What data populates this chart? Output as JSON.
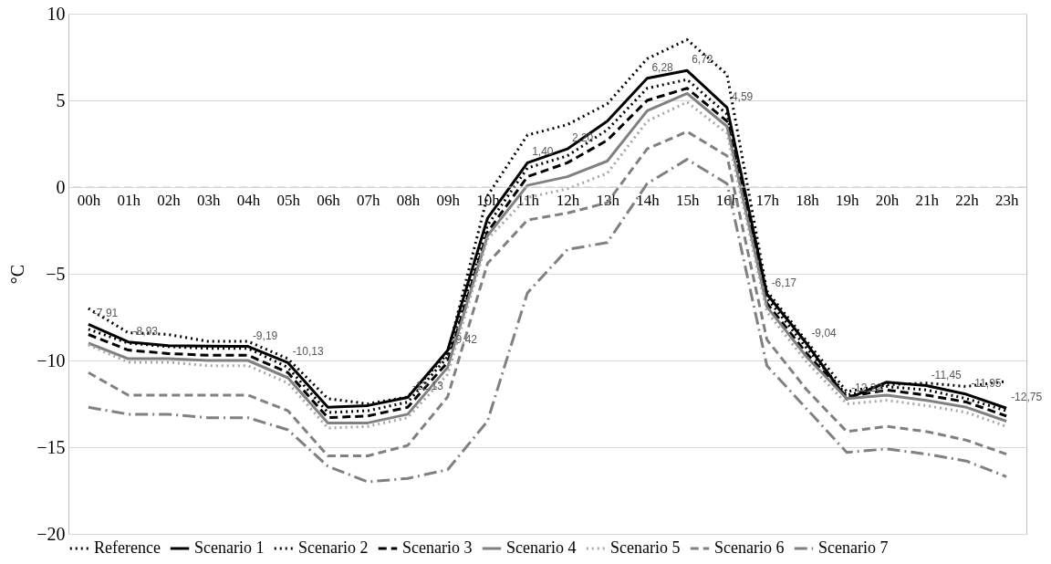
{
  "chart_data": {
    "type": "line",
    "ylabel": "°C",
    "categories": [
      "00h",
      "01h",
      "02h",
      "03h",
      "04h",
      "05h",
      "06h",
      "07h",
      "08h",
      "09h",
      "10h",
      "11h",
      "12h",
      "13h",
      "14h",
      "15h",
      "16h",
      "17h",
      "18h",
      "19h",
      "20h",
      "21h",
      "22h",
      "23h"
    ],
    "ylim": [
      -20,
      10
    ],
    "yticks": [
      -20,
      -15,
      -10,
      -5,
      0,
      5,
      10
    ],
    "grid": "y",
    "legend": "bottom",
    "ref_lines": [
      {
        "axis": "y",
        "value": 0,
        "color": "#cccccc",
        "line_style": "dashed"
      }
    ],
    "series": [
      {
        "name": "Reference",
        "color": "#000000",
        "line_style": "dotted",
        "values": [
          -7.0,
          -8.4,
          -8.5,
          -8.9,
          -8.9,
          -9.9,
          -12.2,
          -12.5,
          -12.1,
          -9.6,
          -0.5,
          3.0,
          3.6,
          4.8,
          7.4,
          8.5,
          6.5,
          -6.0,
          -8.9,
          -11.8,
          -11.4,
          -11.3,
          -11.5,
          -11.2
        ]
      },
      {
        "name": "Scenario 1",
        "color": "#000000",
        "line_style": "solid",
        "values": [
          -7.91,
          -8.93,
          -9.15,
          -9.17,
          -9.19,
          -10.13,
          -12.7,
          -12.6,
          -12.13,
          -9.42,
          -1.8,
          1.4,
          2.2,
          3.8,
          6.28,
          6.72,
          4.59,
          -6.17,
          -9.04,
          -12.22,
          -11.25,
          -11.45,
          -11.95,
          -12.75
        ],
        "value_labels": [
          "-7,91",
          "-8,93",
          null,
          null,
          "-9,19",
          "-10,13",
          null,
          null,
          "-12,13",
          "-9,42",
          null,
          "1,40",
          "2,20",
          null,
          "6,28",
          "6,72",
          "4,59",
          "-6,17",
          "-9,04",
          "-12,22",
          null,
          "-11,45",
          "-11,95",
          "-12,75"
        ]
      },
      {
        "name": "Scenario 2",
        "color": "#000000",
        "line_style": "dotted",
        "values": [
          -8.2,
          -9.0,
          -9.2,
          -9.3,
          -9.3,
          -10.4,
          -13.0,
          -12.9,
          -12.4,
          -9.8,
          -2.2,
          1.1,
          1.8,
          3.3,
          5.7,
          6.2,
          4.2,
          -6.4,
          -9.3,
          -12.0,
          -11.5,
          -11.7,
          -12.2,
          -12.9
        ]
      },
      {
        "name": "Scenario 3",
        "color": "#000000",
        "line_style": "dashed",
        "values": [
          -8.5,
          -9.4,
          -9.6,
          -9.7,
          -9.7,
          -10.7,
          -13.3,
          -13.2,
          -12.7,
          -10.1,
          -2.6,
          0.6,
          1.4,
          2.7,
          5.0,
          5.7,
          3.8,
          -6.7,
          -9.6,
          -12.1,
          -11.7,
          -12.0,
          -12.4,
          -13.2
        ]
      },
      {
        "name": "Scenario 4",
        "color": "#808080",
        "line_style": "solid",
        "values": [
          -9.0,
          -9.9,
          -9.9,
          -10.0,
          -10.0,
          -11.0,
          -13.6,
          -13.6,
          -13.1,
          -10.4,
          -2.8,
          0.1,
          0.6,
          1.5,
          4.4,
          5.4,
          3.5,
          -6.9,
          -9.8,
          -12.2,
          -12.0,
          -12.3,
          -12.7,
          -13.5
        ]
      },
      {
        "name": "Scenario 5",
        "color": "#a6a6a6",
        "line_style": "dotted",
        "values": [
          -9.1,
          -10.1,
          -10.1,
          -10.3,
          -10.3,
          -11.3,
          -13.9,
          -13.8,
          -13.3,
          -10.8,
          -3.0,
          -0.6,
          -0.1,
          0.8,
          3.8,
          4.9,
          3.1,
          -7.2,
          -10.1,
          -12.5,
          -12.3,
          -12.6,
          -13.0,
          -13.8
        ]
      },
      {
        "name": "Scenario 6",
        "color": "#808080",
        "line_style": "dashed",
        "values": [
          -10.7,
          -12.0,
          -12.0,
          -12.0,
          -12.0,
          -12.9,
          -15.5,
          -15.5,
          -14.9,
          -12.1,
          -4.4,
          -1.9,
          -1.5,
          -0.9,
          2.2,
          3.2,
          1.8,
          -8.8,
          -11.7,
          -14.1,
          -13.8,
          -14.1,
          -14.6,
          -15.4
        ]
      },
      {
        "name": "Scenario 7",
        "color": "#808080",
        "line_style": "dashdot",
        "values": [
          -12.7,
          -13.1,
          -13.1,
          -13.3,
          -13.3,
          -14.0,
          -16.1,
          -17.0,
          -16.8,
          -16.3,
          -13.5,
          -6.1,
          -3.6,
          -3.2,
          0.2,
          1.6,
          0.2,
          -10.3,
          -12.8,
          -15.3,
          -15.1,
          -15.4,
          -15.8,
          -16.7
        ]
      }
    ]
  }
}
